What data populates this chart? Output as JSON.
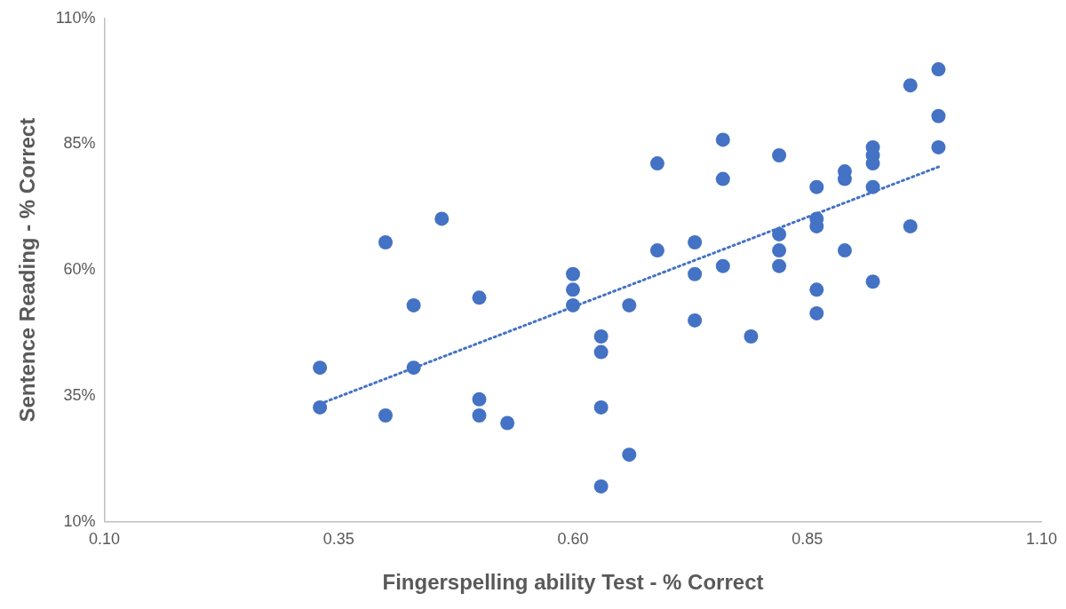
{
  "chart_data": {
    "type": "scatter",
    "xlabel": "Fingerspelling ability Test - % Correct",
    "ylabel": "Sentence Reading - % Correct",
    "xlim": [
      0.1,
      1.1
    ],
    "xticks": [
      {
        "value": 0.1,
        "label": "0.10"
      },
      {
        "value": 0.35,
        "label": "0.35"
      },
      {
        "value": 0.6,
        "label": "0.60"
      },
      {
        "value": 0.85,
        "label": "0.85"
      },
      {
        "value": 1.1,
        "label": "1.10"
      }
    ],
    "ylim": [
      10,
      110
    ],
    "yticks": [
      {
        "value": 10,
        "label": "10%"
      },
      {
        "value": 35,
        "label": "35%"
      },
      {
        "value": 60,
        "label": "60%"
      },
      {
        "value": 85,
        "label": "85%"
      },
      {
        "value": 110,
        "label": "110%"
      }
    ],
    "grid": false,
    "legend": false,
    "marker": "circle",
    "series": [
      {
        "color": "#4472c4",
        "x": [
          0.33,
          0.33,
          0.4,
          0.4,
          0.43,
          0.43,
          0.46,
          0.5,
          0.5,
          0.5,
          0.53,
          0.6,
          0.6,
          0.6,
          0.63,
          0.63,
          0.63,
          0.63,
          0.66,
          0.66,
          0.69,
          0.69,
          0.73,
          0.73,
          0.73,
          0.76,
          0.76,
          0.76,
          0.79,
          0.82,
          0.82,
          0.82,
          0.82,
          0.86,
          0.86,
          0.86,
          0.86,
          0.86,
          0.89,
          0.89,
          0.89,
          0.92,
          0.92,
          0.92,
          0.92,
          0.92,
          0.96,
          0.96,
          0.99,
          0.99,
          0.99
        ],
        "values": [
          40.6,
          32.7,
          65.5,
          31.1,
          53.0,
          40.6,
          70.2,
          54.5,
          34.3,
          31.1,
          29.6,
          59.2,
          56.1,
          53.0,
          46.8,
          43.7,
          32.7,
          17.0,
          53.0,
          23.3,
          81.2,
          63.9,
          65.5,
          59.2,
          50.0,
          85.9,
          78.1,
          60.8,
          46.8,
          82.8,
          67.1,
          63.9,
          60.8,
          76.5,
          70.2,
          68.7,
          56.1,
          51.4,
          79.6,
          78.1,
          63.9,
          84.4,
          82.8,
          81.2,
          76.5,
          57.7,
          96.7,
          68.7,
          99.9,
          90.6,
          84.4
        ]
      },
      {
        "type": "line",
        "color": "#4472c4",
        "line_style": "dotted",
        "marker": "none",
        "x": [
          0.33,
          0.99
        ],
        "values": [
          33.4,
          80.5
        ]
      }
    ]
  }
}
